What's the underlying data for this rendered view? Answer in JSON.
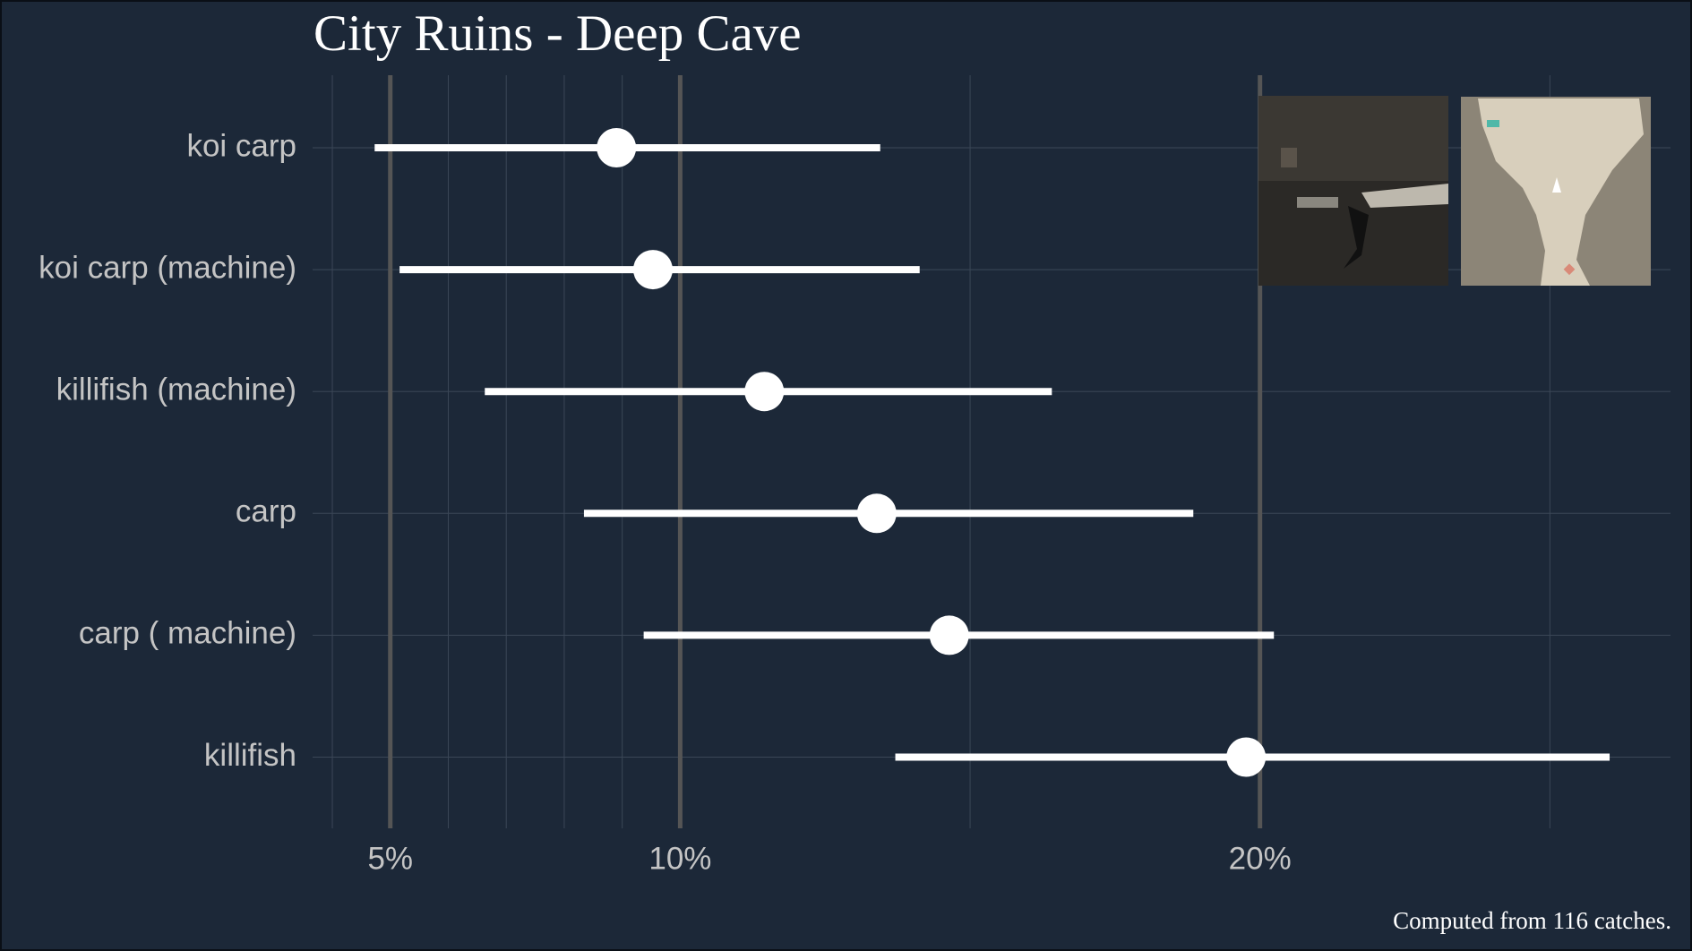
{
  "chart_data": {
    "type": "dot-interval",
    "title": "City Ruins - Deep Cave",
    "caption": "Computed from 116 catches.",
    "categories": [
      "koi carp",
      "koi carp (machine)",
      "killifish (machine)",
      "carp",
      "carp ( machine)",
      "killifish"
    ],
    "values": [
      8.9,
      9.53,
      11.45,
      13.39,
      14.64,
      19.76
    ],
    "lower": [
      4.73,
      5.16,
      6.63,
      8.34,
      9.37,
      13.71
    ],
    "upper": [
      13.45,
      14.13,
      16.41,
      18.85,
      20.24,
      26.03
    ],
    "color": "#ffffff",
    "xlim": [
      3.66,
      27.08
    ],
    "xticks": [
      {
        "value": 5,
        "label": "5%"
      },
      {
        "value": 10,
        "label": "10%"
      },
      {
        "value": 20,
        "label": "20%"
      }
    ],
    "xminor": [
      4,
      6,
      7,
      8,
      9,
      15,
      25
    ],
    "grid": true
  }
}
